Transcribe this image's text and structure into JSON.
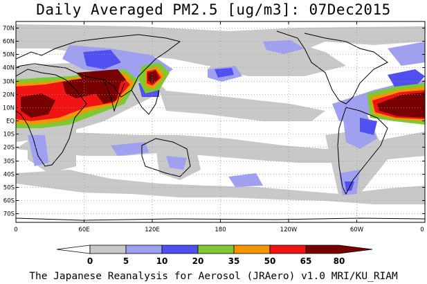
{
  "title": "Daily Averaged PM2.5 [ug/m3]: 07Dec2015",
  "footer": "The Japanese Reanalysis for Aerosol (JRAero) v1.0 MRI/KU_RIAM",
  "map": {
    "lat_labels": [
      "70N",
      "60N",
      "50N",
      "40N",
      "30N",
      "20N",
      "10N",
      "EQ",
      "10S",
      "20S",
      "30S",
      "40S",
      "50S",
      "60S",
      "70S"
    ],
    "lon_labels": [
      "0",
      "60E",
      "120E",
      "180",
      "120W",
      "60W",
      "0"
    ]
  },
  "colorbar": {
    "ticks": [
      "0",
      "5",
      "10",
      "20",
      "35",
      "50",
      "65",
      "80"
    ],
    "colors": [
      "#ffffff",
      "#c8c8c8",
      "#a0a0f0",
      "#5050f0",
      "#7ec832",
      "#f59600",
      "#f01414",
      "#780000"
    ]
  }
}
